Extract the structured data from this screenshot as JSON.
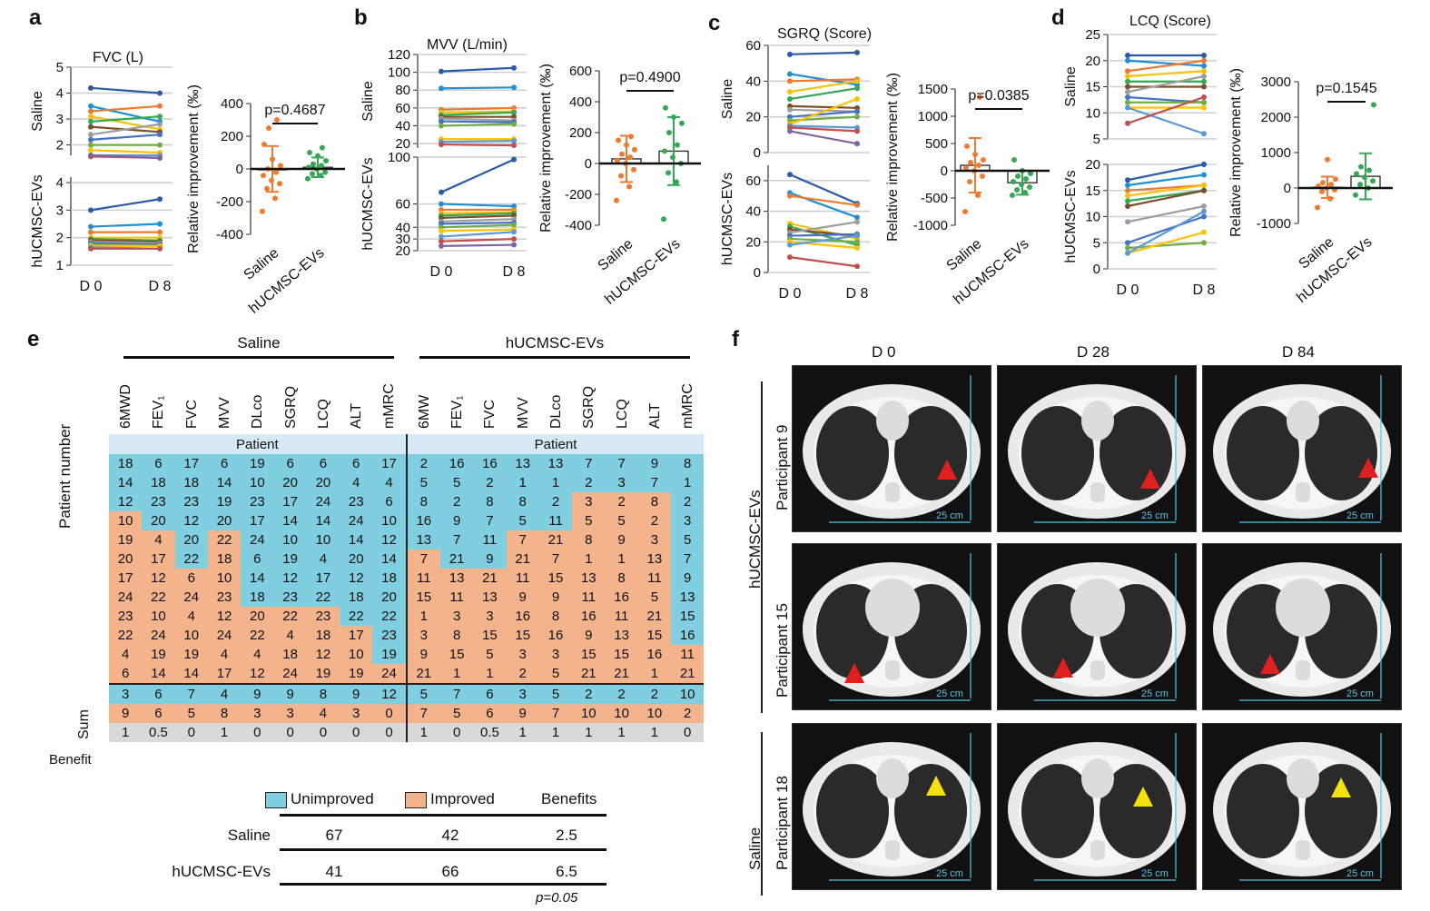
{
  "panels": {
    "a": {
      "label": "a",
      "title": "FVC (L)",
      "p": "p=0.4687"
    },
    "b": {
      "label": "b",
      "title": "MVV (L/min)",
      "p": "p=0.4900"
    },
    "c": {
      "label": "c",
      "title": "SGRQ (Score)",
      "p": "p=0.0385"
    },
    "d": {
      "label": "d",
      "title": "LCQ (Score)",
      "p": "p=0.1545"
    },
    "e": {
      "label": "e"
    },
    "f": {
      "label": "f"
    }
  },
  "common": {
    "saline": "Saline",
    "ev": "hUCMSC-EVs",
    "d0": "D 0",
    "d8": "D 8",
    "rel_ylabel": "Relative improvement (‰)",
    "cat1": "Saline",
    "cat2": "hUCMSC-EVs"
  },
  "colors": {
    "orange": "#ee7a31",
    "green": "#35a853",
    "blue": "#7fcfe0",
    "peach": "#f3b48c",
    "gray": "#d9d9d9"
  },
  "chart_data": [
    {
      "type": "line",
      "title": "FVC (L)",
      "xlabel": "",
      "x": [
        "D 0",
        "D 8"
      ],
      "groups": [
        {
          "name": "Saline",
          "ticks": [
            "2",
            "3",
            "4",
            "5"
          ],
          "ylim": [
            1.6,
            5
          ],
          "series": [
            [
              4.2,
              4.0
            ],
            [
              3.5,
              2.9
            ],
            [
              3.3,
              3.5
            ],
            [
              3.1,
              2.6
            ],
            [
              2.9,
              3.1
            ],
            [
              2.7,
              2.5
            ],
            [
              2.4,
              2.8
            ],
            [
              2.2,
              2.4
            ],
            [
              2.0,
              2.0
            ],
            [
              1.8,
              1.7
            ],
            [
              1.6,
              1.6
            ],
            [
              1.55,
              1.5
            ],
            [
              1.6,
              1.5
            ]
          ]
        },
        {
          "name": "hUCMSC-EVs",
          "ticks": [
            "1",
            "2",
            "3",
            "4"
          ],
          "ylim": [
            1,
            4.2
          ],
          "series": [
            [
              3.0,
              3.4
            ],
            [
              2.4,
              2.5
            ],
            [
              2.2,
              2.2
            ],
            [
              2.0,
              2.0
            ],
            [
              1.95,
              1.9
            ],
            [
              1.9,
              1.85
            ],
            [
              1.85,
              1.8
            ],
            [
              1.8,
              1.75
            ],
            [
              1.75,
              1.7
            ],
            [
              1.7,
              1.7
            ],
            [
              1.65,
              1.6
            ],
            [
              1.6,
              1.6
            ]
          ]
        }
      ]
    },
    {
      "type": "scatter",
      "title": "",
      "ylabel": "Relative improvement (‰)",
      "categories": [
        "Saline",
        "hUCMSC-EVs"
      ],
      "ylim": [
        -400,
        400
      ],
      "ticks": [
        -400,
        -200,
        0,
        200,
        400
      ],
      "bars": [
        0,
        10
      ],
      "sd": [
        140,
        60
      ],
      "p": "p=0.4687",
      "points": [
        [
          -260,
          -180,
          -120,
          -90,
          -70,
          -40,
          -20,
          0,
          20,
          60,
          150,
          300,
          250
        ],
        [
          -60,
          -40,
          -30,
          -20,
          0,
          10,
          20,
          30,
          50,
          80,
          100,
          130
        ]
      ]
    },
    {
      "type": "line",
      "title": "MVV (L/min)",
      "x": [
        "D 0",
        "D 8"
      ],
      "groups": [
        {
          "name": "Saline",
          "ticks": [
            "20",
            "40",
            "60",
            "80",
            "100",
            "120"
          ],
          "ylim": [
            15,
            120
          ],
          "series": [
            [
              101,
              105
            ],
            [
              82,
              83
            ],
            [
              58,
              60
            ],
            [
              55,
              56
            ],
            [
              52,
              55
            ],
            [
              50,
              50
            ],
            [
              48,
              46
            ],
            [
              45,
              44
            ],
            [
              40,
              42
            ],
            [
              25,
              25
            ],
            [
              22,
              23
            ],
            [
              19,
              18
            ]
          ]
        },
        {
          "name": "hUCMSC-EVs",
          "ticks": [
            "20",
            "30",
            "40",
            "60",
            "100"
          ],
          "ylim": [
            20,
            100
          ],
          "series": [
            [
              70,
              98
            ],
            [
              60,
              58
            ],
            [
              55,
              55
            ],
            [
              52,
              53
            ],
            [
              50,
              52
            ],
            [
              48,
              50
            ],
            [
              45,
              47
            ],
            [
              43,
              44
            ],
            [
              40,
              42
            ],
            [
              37,
              38
            ],
            [
              32,
              36
            ],
            [
              28,
              30
            ],
            [
              24,
              25
            ]
          ]
        }
      ]
    },
    {
      "type": "scatter",
      "ylabel": "Relative improvement (‰)",
      "categories": [
        "Saline",
        "hUCMSC-EVs"
      ],
      "ylim": [
        -400,
        600
      ],
      "ticks": [
        -400,
        -200,
        0,
        200,
        400,
        600
      ],
      "bars": [
        30,
        80
      ],
      "sd": [
        150,
        220
      ],
      "p": "p=0.4900",
      "points": [
        [
          -240,
          -150,
          -80,
          -40,
          0,
          20,
          40,
          60,
          90,
          120,
          150,
          175
        ],
        [
          -360,
          -120,
          -60,
          0,
          40,
          80,
          120,
          200,
          260,
          300,
          360
        ]
      ]
    },
    {
      "type": "line",
      "title": "SGRQ (Score)",
      "x": [
        "D 0",
        "D 8"
      ],
      "groups": [
        {
          "name": "Saline",
          "ticks": [
            "0",
            "20",
            "40",
            "60"
          ],
          "ylim": [
            0,
            60
          ],
          "series": [
            [
              55,
              56
            ],
            [
              44,
              38
            ],
            [
              40,
              41
            ],
            [
              34,
              40
            ],
            [
              30,
              36
            ],
            [
              26,
              25
            ],
            [
              24,
              23
            ],
            [
              20,
              23
            ],
            [
              18,
              20
            ],
            [
              16,
              30
            ],
            [
              15,
              14
            ],
            [
              14,
              12
            ],
            [
              12,
              5
            ]
          ]
        },
        {
          "name": "hUCMSC-EVs",
          "ticks": [
            "0",
            "20",
            "40",
            "60"
          ],
          "ylim": [
            0,
            70
          ],
          "series": [
            [
              64,
              45
            ],
            [
              52,
              36
            ],
            [
              50,
              44
            ],
            [
              32,
              22
            ],
            [
              30,
              18
            ],
            [
              28,
              24
            ],
            [
              26,
              33
            ],
            [
              24,
              25
            ],
            [
              22,
              20
            ],
            [
              20,
              16
            ],
            [
              18,
              24
            ],
            [
              10,
              4
            ]
          ]
        }
      ]
    },
    {
      "type": "scatter",
      "ylabel": "Relative improvement (‰)",
      "categories": [
        "Saline",
        "hUCMSC-EVs"
      ],
      "ylim": [
        -1000,
        1500
      ],
      "ticks": [
        -1000,
        -500,
        0,
        500,
        1000,
        1500
      ],
      "bars": [
        100,
        -220
      ],
      "sd": [
        500,
        220
      ],
      "p": "p=0.0385",
      "points": [
        [
          -750,
          -450,
          -200,
          -100,
          0,
          50,
          100,
          150,
          200,
          300,
          450,
          1350
        ],
        [
          -450,
          -400,
          -350,
          -300,
          -250,
          -200,
          -150,
          -100,
          -50,
          0,
          200
        ]
      ]
    },
    {
      "type": "line",
      "title": "LCQ (Score)",
      "x": [
        "D 0",
        "D 8"
      ],
      "groups": [
        {
          "name": "Saline",
          "ticks": [
            "5",
            "10",
            "15",
            "20",
            "25"
          ],
          "ylim": [
            5,
            25
          ],
          "series": [
            [
              21,
              21
            ],
            [
              20,
              19
            ],
            [
              18,
              20
            ],
            [
              17,
              18
            ],
            [
              16,
              16
            ],
            [
              15,
              15
            ],
            [
              14,
              17
            ],
            [
              13,
              12
            ],
            [
              12,
              12
            ],
            [
              11,
              11
            ],
            [
              11,
              6
            ],
            [
              8,
              13
            ]
          ]
        },
        {
          "name": "hUCMSC-EVs",
          "ticks": [
            "0",
            "5",
            "10",
            "15",
            "20"
          ],
          "ylim": [
            0,
            20
          ],
          "series": [
            [
              17,
              20
            ],
            [
              16,
              18
            ],
            [
              15,
              16
            ],
            [
              14,
              16
            ],
            [
              13,
              15
            ],
            [
              12,
              15
            ],
            [
              9,
              12
            ],
            [
              5,
              10
            ],
            [
              4,
              5
            ],
            [
              3,
              7
            ],
            [
              3,
              11
            ]
          ]
        }
      ]
    },
    {
      "type": "scatter",
      "ylabel": "Relative improvement (‰)",
      "categories": [
        "Saline",
        "hUCMSC-EVs"
      ],
      "ylim": [
        -1000,
        3000
      ],
      "ticks": [
        -1000,
        0,
        1000,
        2000,
        3000
      ],
      "bars": [
        20,
        330
      ],
      "sd": [
        300,
        650
      ],
      "p": "p=0.1545",
      "points": [
        [
          -550,
          -300,
          -100,
          -50,
          0,
          50,
          100,
          150,
          250,
          800
        ],
        [
          -200,
          0,
          100,
          200,
          300,
          400,
          500,
          600,
          2350
        ]
      ]
    },
    {
      "type": "table",
      "title": "e",
      "groups": [
        "Saline",
        "hUCMSC-EVs"
      ],
      "columns_saline": [
        "6MWD",
        "FEV₁",
        "FVC",
        "MVV",
        "DLco",
        "SGRQ",
        "LCQ",
        "ALT",
        "mMRC"
      ],
      "columns_ev": [
        "6MW",
        "FEV₁",
        "FVC",
        "MVV",
        "DLco",
        "SGRQ",
        "LCQ",
        "ALT",
        "mMRC"
      ],
      "row_label": "Patient number",
      "patient_header": "Patient",
      "saline_values": [
        [
          18,
          6,
          17,
          6,
          19,
          6,
          6,
          6,
          17
        ],
        [
          14,
          18,
          18,
          14,
          10,
          20,
          20,
          4,
          4
        ],
        [
          12,
          23,
          23,
          19,
          23,
          17,
          24,
          23,
          6
        ],
        [
          10,
          20,
          12,
          20,
          17,
          14,
          14,
          24,
          10
        ],
        [
          19,
          4,
          20,
          22,
          24,
          10,
          10,
          14,
          12
        ],
        [
          20,
          17,
          22,
          18,
          6,
          19,
          4,
          20,
          14
        ],
        [
          17,
          12,
          6,
          10,
          14,
          12,
          17,
          12,
          18
        ],
        [
          24,
          22,
          24,
          23,
          18,
          23,
          22,
          18,
          20
        ],
        [
          23,
          10,
          4,
          12,
          20,
          22,
          23,
          22,
          22
        ],
        [
          22,
          24,
          10,
          24,
          22,
          4,
          18,
          17,
          23
        ],
        [
          4,
          19,
          19,
          4,
          4,
          18,
          12,
          10,
          19
        ],
        [
          6,
          14,
          14,
          17,
          12,
          24,
          19,
          19,
          24
        ]
      ],
      "saline_improved_from_row": [
        3,
        4,
        6,
        4,
        8,
        8,
        8,
        9,
        11
      ],
      "ev_values": [
        [
          2,
          16,
          16,
          13,
          13,
          7,
          7,
          9,
          8
        ],
        [
          5,
          5,
          2,
          1,
          1,
          2,
          3,
          7,
          1
        ],
        [
          8,
          2,
          8,
          8,
          2,
          3,
          2,
          8,
          2
        ],
        [
          16,
          9,
          7,
          5,
          11,
          5,
          5,
          2,
          3
        ],
        [
          13,
          7,
          11,
          7,
          21,
          8,
          9,
          3,
          5
        ],
        [
          7,
          21,
          9,
          21,
          7,
          1,
          1,
          13,
          7
        ],
        [
          11,
          13,
          21,
          11,
          15,
          13,
          8,
          11,
          9
        ],
        [
          15,
          11,
          13,
          9,
          9,
          11,
          16,
          5,
          13
        ],
        [
          1,
          3,
          3,
          16,
          8,
          16,
          11,
          21,
          15
        ],
        [
          3,
          8,
          15,
          15,
          16,
          9,
          13,
          15,
          16
        ],
        [
          9,
          15,
          5,
          3,
          3,
          15,
          15,
          16,
          11
        ],
        [
          21,
          1,
          1,
          2,
          5,
          21,
          21,
          1,
          21
        ]
      ],
      "ev_improved_from_row": [
        5,
        6,
        6,
        4,
        4,
        2,
        2,
        2,
        10
      ],
      "sum_label": "Sum",
      "benefit_label": "Benefit",
      "saline_sum_unimproved": [
        3,
        6,
        7,
        4,
        9,
        9,
        8,
        9,
        12
      ],
      "saline_sum_improved": [
        9,
        6,
        5,
        8,
        3,
        3,
        4,
        3,
        0
      ],
      "saline_benefit": [
        "1",
        "0.5",
        "0",
        "1",
        "0",
        "0",
        "0",
        "0",
        "0"
      ],
      "ev_sum_unimproved": [
        5,
        7,
        6,
        3,
        5,
        2,
        2,
        2,
        10
      ],
      "ev_sum_improved": [
        7,
        5,
        6,
        9,
        7,
        10,
        10,
        10,
        2
      ],
      "ev_benefit": [
        "1",
        "0",
        "0.5",
        "1",
        "1",
        "1",
        "1",
        "1",
        "0"
      ],
      "summary": {
        "legend": [
          "Unimproved",
          "Improved",
          "Benefits"
        ],
        "rows": [
          {
            "name": "Saline",
            "values": [
              "67",
              "42",
              "2.5"
            ]
          },
          {
            "name": "hUCMSC-EVs",
            "values": [
              "41",
              "66",
              "6.5"
            ]
          }
        ],
        "p": "p=0.05"
      }
    }
  ],
  "ct": {
    "cols": [
      "D 0",
      "D 28",
      "D 84"
    ],
    "group_ev": "hUCMSC-EVs",
    "group_saline": "Saline",
    "rows": [
      "Participant 9",
      "Participant 15",
      "Participant 18"
    ],
    "scale": "25 cm"
  }
}
